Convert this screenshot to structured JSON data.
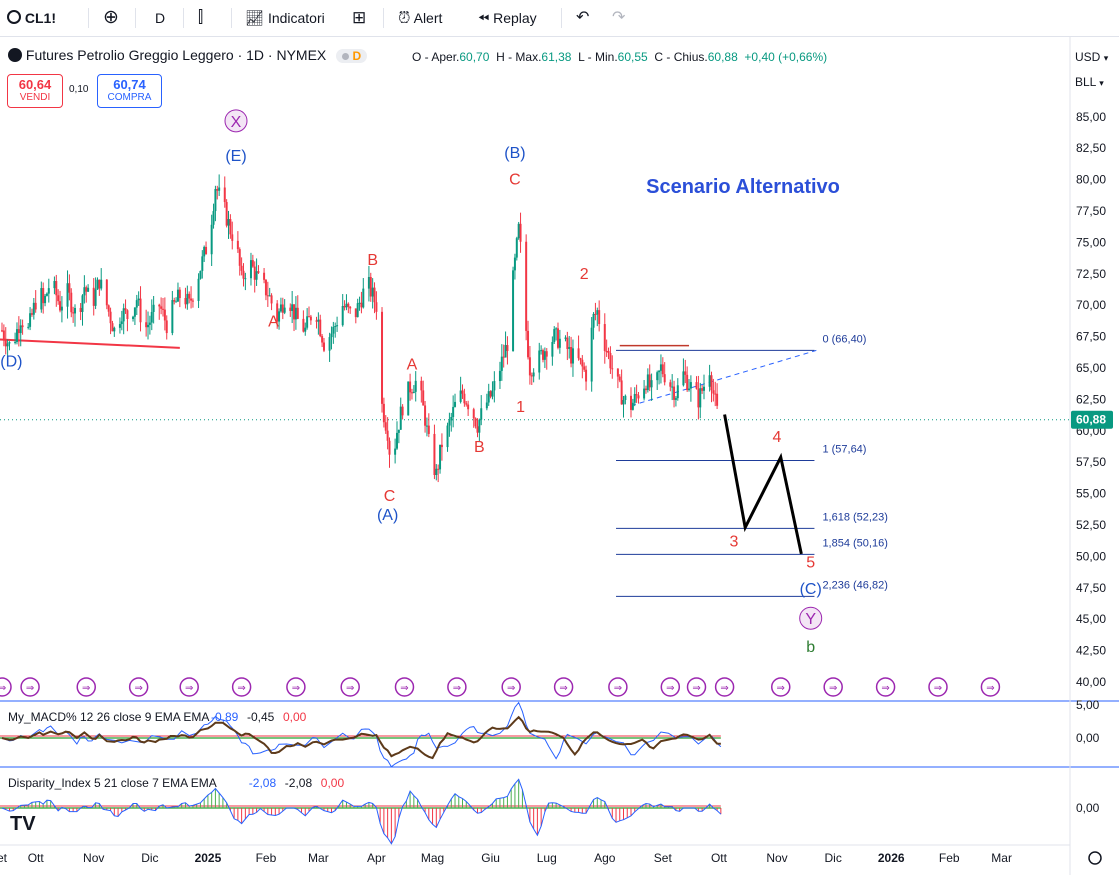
{
  "toolbar": {
    "symbol": "CL1!",
    "interval": "D",
    "indicators_label": "Indicatori",
    "alert_label": "Alert",
    "replay_label": "Replay"
  },
  "legend": {
    "title": "Futures Petrolio Greggio Leggero · 1D · NYMEX",
    "d_badge": "D",
    "open_label": "O - Aper.",
    "open": "60,70",
    "high_label": "H - Max.",
    "high": "61,38",
    "low_label": "L - Min.",
    "low": "60,55",
    "close_label": "C - Chius.",
    "close": "60,88",
    "change": "+0,40 (+0,66%)"
  },
  "trade": {
    "sell_price": "60,64",
    "sell_label": "VENDI",
    "spread": "0,10",
    "buy_price": "60,74",
    "buy_label": "COMPRA"
  },
  "axis_units": {
    "currency": "USD",
    "unit": "BLL"
  },
  "colors": {
    "up": "#089981",
    "down": "#f23645",
    "blue": "#2962ff",
    "wave_red": "#e53935",
    "wave_blue": "#1e53c8",
    "purple": "#9c27b0",
    "green": "#2e7d32"
  },
  "chart_data": {
    "type": "candlestick",
    "title": "Scenario Alternativo",
    "instrument": "CL1!",
    "ylim": [
      38.5,
      87.5
    ],
    "yticks": [
      40,
      42.5,
      45,
      47.5,
      50,
      52.5,
      55,
      57.5,
      60,
      62.5,
      65,
      67.5,
      70,
      72.5,
      75,
      77.5,
      80,
      82.5,
      85
    ],
    "ytick_labels": [
      "40,00",
      "42,50",
      "45,00",
      "47,50",
      "50,00",
      "52,50",
      "55,00",
      "57,50",
      "60,00",
      "62,50",
      "65,00",
      "67,50",
      "70,00",
      "72,50",
      "75,00",
      "77,50",
      "80,00",
      "82,50",
      "85,00"
    ],
    "last_price": 60.88,
    "last_price_label": "60,88",
    "xticks": [
      {
        "label": "et",
        "d": 0
      },
      {
        "label": "Ott",
        "d": 18
      },
      {
        "label": "Nov",
        "d": 49
      },
      {
        "label": "Dic",
        "d": 79
      },
      {
        "label": "2025",
        "d": 110
      },
      {
        "label": "Feb",
        "d": 141
      },
      {
        "label": "Mar",
        "d": 169
      },
      {
        "label": "Apr",
        "d": 200
      },
      {
        "label": "Mag",
        "d": 230
      },
      {
        "label": "Giu",
        "d": 261
      },
      {
        "label": "Lug",
        "d": 291
      },
      {
        "label": "Ago",
        "d": 322
      },
      {
        "label": "Set",
        "d": 353
      },
      {
        "label": "Ott",
        "d": 383
      },
      {
        "label": "Nov",
        "d": 414
      },
      {
        "label": "Dic",
        "d": 444
      },
      {
        "label": "2026",
        "d": 475
      },
      {
        "label": "Feb",
        "d": 506
      },
      {
        "label": "Mar",
        "d": 534
      }
    ],
    "price_path": [
      [
        0,
        68
      ],
      [
        5,
        66.5
      ],
      [
        10,
        69
      ],
      [
        14,
        68
      ],
      [
        20,
        71.5
      ],
      [
        22,
        70
      ],
      [
        26,
        72
      ],
      [
        31,
        70
      ],
      [
        35,
        71
      ],
      [
        40,
        69
      ],
      [
        44,
        71.5
      ],
      [
        48,
        70
      ],
      [
        52,
        72
      ],
      [
        56,
        70
      ],
      [
        60,
        68
      ],
      [
        64,
        69.5
      ],
      [
        68,
        69
      ],
      [
        72,
        70.5
      ],
      [
        76,
        68
      ],
      [
        80,
        69
      ],
      [
        84,
        70
      ],
      [
        88,
        68.5
      ],
      [
        92,
        70
      ],
      [
        96,
        71
      ],
      [
        100,
        70
      ],
      [
        104,
        72
      ],
      [
        106,
        73
      ],
      [
        110,
        75
      ],
      [
        112,
        77
      ],
      [
        114,
        79.5
      ],
      [
        118,
        78
      ],
      [
        122,
        76
      ],
      [
        125,
        75
      ],
      [
        128,
        72
      ],
      [
        132,
        73.5
      ],
      [
        137,
        72
      ],
      [
        142,
        71
      ],
      [
        147,
        69
      ],
      [
        152,
        71
      ],
      [
        157,
        69
      ],
      [
        162,
        68
      ],
      [
        167,
        70
      ],
      [
        172,
        67
      ],
      [
        177,
        68
      ],
      [
        182,
        70
      ],
      [
        188,
        69
      ],
      [
        193,
        71
      ],
      [
        196,
        71.5
      ],
      [
        200,
        70
      ],
      [
        203,
        62
      ],
      [
        206,
        60
      ],
      [
        208,
        57
      ],
      [
        211,
        60
      ],
      [
        214,
        62
      ],
      [
        218,
        63.5
      ],
      [
        222,
        64
      ],
      [
        226,
        61
      ],
      [
        229,
        58
      ],
      [
        232,
        56.5
      ],
      [
        235,
        59
      ],
      [
        238,
        60
      ],
      [
        242,
        62
      ],
      [
        246,
        63
      ],
      [
        250,
        62
      ],
      [
        254,
        60.5
      ],
      [
        258,
        62
      ],
      [
        262,
        63
      ],
      [
        266,
        65
      ],
      [
        270,
        67
      ],
      [
        273,
        72
      ],
      [
        276,
        76
      ],
      [
        278,
        73
      ],
      [
        280,
        68
      ],
      [
        282,
        65
      ],
      [
        286,
        65.5
      ],
      [
        290,
        66.5
      ],
      [
        295,
        67.5
      ],
      [
        300,
        67
      ],
      [
        304,
        66
      ],
      [
        308,
        65.5
      ],
      [
        312,
        64.5
      ],
      [
        316,
        69
      ],
      [
        318,
        69.5
      ],
      [
        321,
        67.5
      ],
      [
        324,
        66
      ],
      [
        328,
        64
      ],
      [
        332,
        62.5
      ],
      [
        336,
        62
      ],
      [
        340,
        63
      ],
      [
        344,
        64
      ],
      [
        348,
        63
      ],
      [
        352,
        65
      ],
      [
        356,
        64
      ],
      [
        360,
        63
      ],
      [
        364,
        64.5
      ],
      [
        368,
        63.5
      ],
      [
        372,
        62.5
      ],
      [
        376,
        64
      ],
      [
        378,
        65
      ],
      [
        380,
        63
      ],
      [
        382,
        61.5
      ],
      [
        384,
        60.88
      ]
    ],
    "series": [
      {
        "name": "Scenario Alternativo projection",
        "x": [
          386,
          397,
          416,
          427
        ],
        "y": [
          61.3,
          52.3,
          57.9,
          50.2
        ]
      }
    ],
    "support_line": {
      "x1": -5,
      "y1": 67.3,
      "x2": 95,
      "y2": 66.6
    },
    "resistance_line": {
      "x1": 330,
      "y1": 66.3,
      "x2": 367,
      "y2": 66.3
    },
    "triangle_dash": {
      "x1": 336,
      "y1": 62,
      "x2": 435,
      "y2": 66.4
    },
    "fib_levels": [
      {
        "label": "0 (66,40)",
        "value": 66.4
      },
      {
        "label": "1 (57,64)",
        "value": 57.64
      },
      {
        "label": "1,618 (52,23)",
        "value": 52.23
      },
      {
        "label": "1,854 (50,16)",
        "value": 50.16
      },
      {
        "label": "2,236 (46,82)",
        "value": 46.82
      }
    ],
    "fib_x_range": [
      328,
      434
    ],
    "wave_labels": [
      {
        "text": "(D)",
        "d": 5,
        "y": 65.1,
        "color": "wave_blue"
      },
      {
        "text": "(E)",
        "d": 125,
        "y": 81.5,
        "color": "wave_blue"
      },
      {
        "text": "X",
        "d": 125,
        "y": 84.2,
        "color": "purple",
        "circled": true
      },
      {
        "text": "A",
        "d": 145,
        "y": 68.3,
        "color": "wave_red"
      },
      {
        "text": "B",
        "d": 198,
        "y": 73.2,
        "color": "wave_red"
      },
      {
        "text": "A",
        "d": 219,
        "y": 64.9,
        "color": "wave_red"
      },
      {
        "text": "C",
        "d": 207,
        "y": 54.4,
        "color": "wave_red"
      },
      {
        "text": "(A)",
        "d": 206,
        "y": 52.9,
        "color": "wave_blue"
      },
      {
        "text": "B",
        "d": 255,
        "y": 58.3,
        "color": "wave_red"
      },
      {
        "text": "1",
        "d": 277,
        "y": 61.5,
        "color": "wave_red"
      },
      {
        "text": "(B)",
        "d": 274,
        "y": 81.7,
        "color": "wave_blue"
      },
      {
        "text": "C",
        "d": 274,
        "y": 79.6,
        "color": "wave_red"
      },
      {
        "text": "2",
        "d": 311,
        "y": 72.1,
        "color": "wave_red"
      },
      {
        "text": "3",
        "d": 391,
        "y": 50.8,
        "color": "wave_red"
      },
      {
        "text": "4",
        "d": 414,
        "y": 59.1,
        "color": "wave_red"
      },
      {
        "text": "5",
        "d": 432,
        "y": 49.1,
        "color": "wave_red"
      },
      {
        "text": "(C)",
        "d": 432,
        "y": 47.0,
        "color": "wave_blue"
      },
      {
        "text": "Y",
        "d": 432,
        "y": 44.6,
        "color": "purple",
        "circled": true
      },
      {
        "text": "b",
        "d": 432,
        "y": 42.4,
        "color": "green"
      }
    ],
    "event_markers_d": [
      0,
      15,
      45,
      73,
      100,
      128,
      157,
      186,
      215,
      243,
      272,
      300,
      329,
      357,
      371,
      386,
      416,
      444,
      472,
      500,
      528
    ],
    "indicators": [
      {
        "name": "My_MACD%",
        "params": "12 26 close 9 EMA EMA",
        "values": [
          "-0,89",
          "-0,45",
          "0,00"
        ],
        "zero_label": "0,00",
        "top_label": "5,00",
        "ylim": [
          -3,
          3
        ]
      },
      {
        "name": "Disparity_Index",
        "params": "5 21 close 7 EMA EMA",
        "values": [
          "-2,08",
          "-2,08",
          "0,00"
        ],
        "zero_label": "0,00",
        "ylim": [
          -10,
          10
        ]
      }
    ]
  }
}
